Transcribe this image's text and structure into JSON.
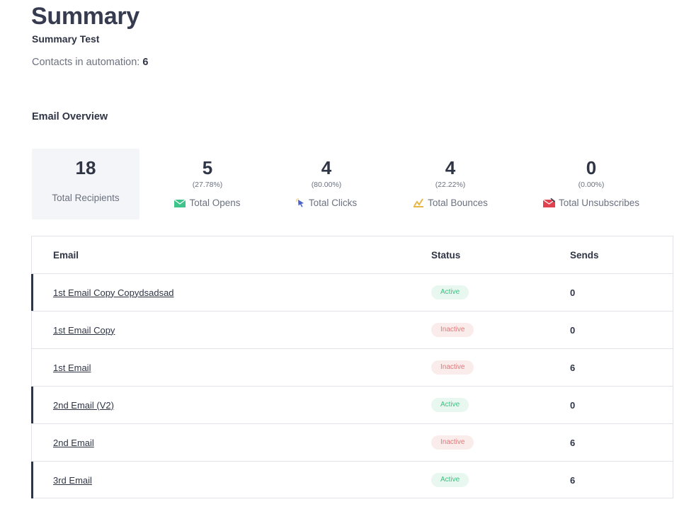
{
  "header": {
    "title": "Summary",
    "automation_name": "Summary Test",
    "contacts_label": "Contacts in automation:",
    "contacts_count": "6"
  },
  "overview": {
    "title": "Email Overview",
    "stats": [
      {
        "key": "recipients",
        "value": "18",
        "pct": "",
        "label": "Total Recipients",
        "icon": ""
      },
      {
        "key": "opens",
        "value": "5",
        "pct": "(27.78%)",
        "label": "Total Opens",
        "icon": "envelope-icon"
      },
      {
        "key": "clicks",
        "value": "4",
        "pct": "(80.00%)",
        "label": "Total Clicks",
        "icon": "cursor-click-icon"
      },
      {
        "key": "bounces",
        "value": "4",
        "pct": "(22.22%)",
        "label": "Total Bounces",
        "icon": "bounce-icon"
      },
      {
        "key": "unsubscribes",
        "value": "0",
        "pct": "(0.00%)",
        "label": "Total Unsubscribes",
        "icon": "unsubscribe-envelope-icon"
      }
    ]
  },
  "table": {
    "columns": {
      "email": "Email",
      "status": "Status",
      "sends": "Sends"
    },
    "rows": [
      {
        "email": "1st Email Copy Copydsadsad",
        "status": "Active",
        "sends": "0"
      },
      {
        "email": "1st Email Copy",
        "status": "Inactive",
        "sends": "0"
      },
      {
        "email": "1st Email",
        "status": "Inactive",
        "sends": "6"
      },
      {
        "email": "2nd Email (V2)",
        "status": "Active",
        "sends": "0"
      },
      {
        "email": "2nd Email",
        "status": "Inactive",
        "sends": "6"
      },
      {
        "email": "3rd Email",
        "status": "Active",
        "sends": "6"
      }
    ]
  },
  "colors": {
    "active_text": "#3fbf83",
    "active_bg": "#e8f7ef",
    "inactive_text": "#e07878",
    "inactive_bg": "#fbecec",
    "row_marker": "#2f3545",
    "opens_icon": "#3ec48a",
    "clicks_icon": "#4a63c8",
    "bounces_icon": "#e8b84a",
    "unsubscribes_icon": "#e0434f"
  }
}
